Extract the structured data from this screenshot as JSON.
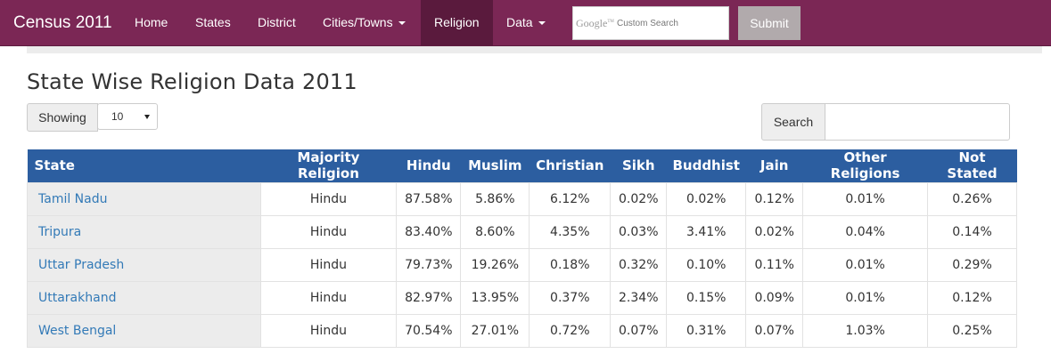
{
  "navbar": {
    "brand": "Census 2011",
    "items": [
      {
        "label": "Home",
        "has_caret": false,
        "active": false
      },
      {
        "label": "States",
        "has_caret": false,
        "active": false
      },
      {
        "label": "District",
        "has_caret": false,
        "active": false
      },
      {
        "label": "Cities/Towns",
        "has_caret": true,
        "active": false
      },
      {
        "label": "Religion",
        "has_caret": false,
        "active": true
      },
      {
        "label": "Data",
        "has_caret": true,
        "active": false
      }
    ],
    "search_logo": "Google",
    "search_placeholder": "Custom Search",
    "submit_label": "Submit",
    "colors": {
      "bar": "#7b2755",
      "active": "#5a1a3d",
      "submit": "#b1aaac"
    }
  },
  "page": {
    "title": "State Wise Religion Data 2011"
  },
  "controls": {
    "showing_label": "Showing",
    "showing_value": "10",
    "search_label": "Search",
    "search_value": ""
  },
  "table": {
    "header_color": "#2c5ea0",
    "columns": [
      "State",
      "Majority Religion",
      "Hindu",
      "Muslim",
      "Christian",
      "Sikh",
      "Buddhist",
      "Jain",
      "Other Religions",
      "Not Stated"
    ],
    "rows": [
      [
        "Tamil Nadu",
        "Hindu",
        "87.58%",
        "5.86%",
        "6.12%",
        "0.02%",
        "0.02%",
        "0.12%",
        "0.01%",
        "0.26%"
      ],
      [
        "Tripura",
        "Hindu",
        "83.40%",
        "8.60%",
        "4.35%",
        "0.03%",
        "3.41%",
        "0.02%",
        "0.04%",
        "0.14%"
      ],
      [
        "Uttar Pradesh",
        "Hindu",
        "79.73%",
        "19.26%",
        "0.18%",
        "0.32%",
        "0.10%",
        "0.11%",
        "0.01%",
        "0.29%"
      ],
      [
        "Uttarakhand",
        "Hindu",
        "82.97%",
        "13.95%",
        "0.37%",
        "2.34%",
        "0.15%",
        "0.09%",
        "0.01%",
        "0.12%"
      ],
      [
        "West Bengal",
        "Hindu",
        "70.54%",
        "27.01%",
        "0.72%",
        "0.07%",
        "0.31%",
        "0.07%",
        "1.03%",
        "0.25%"
      ]
    ]
  }
}
